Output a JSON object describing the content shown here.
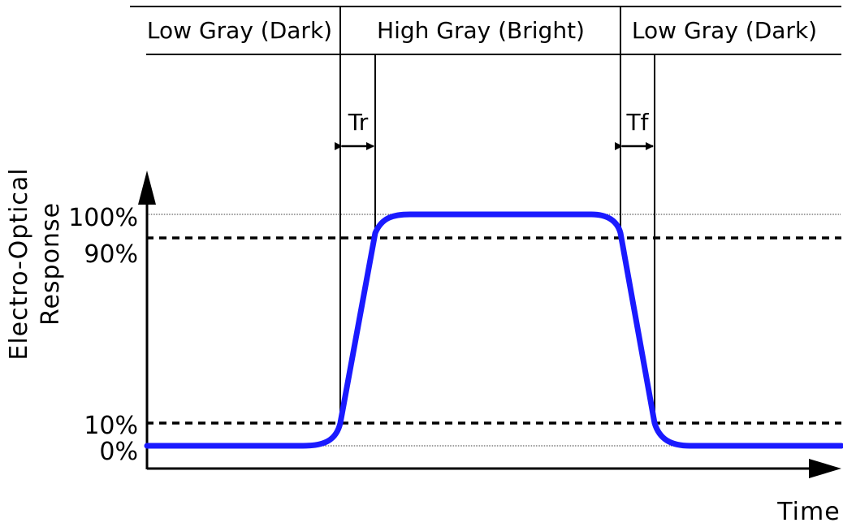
{
  "header": {
    "segment_1": "Low Gray (Dark)",
    "segment_2": "High Gray (Bright)",
    "segment_3": "Low Gray (Dark)"
  },
  "timing": {
    "rise_label": "Tr",
    "fall_label": "Tf"
  },
  "levels": {
    "level_100": "100%",
    "level_90": "90%",
    "level_10": "10%",
    "level_0": "0%"
  },
  "axes": {
    "y_label_line1": "Electro-Optical",
    "y_label_line2": "Response",
    "x_label": "Time"
  },
  "colors": {
    "response_curve": "#1a1aff",
    "lines": "#000000"
  }
}
